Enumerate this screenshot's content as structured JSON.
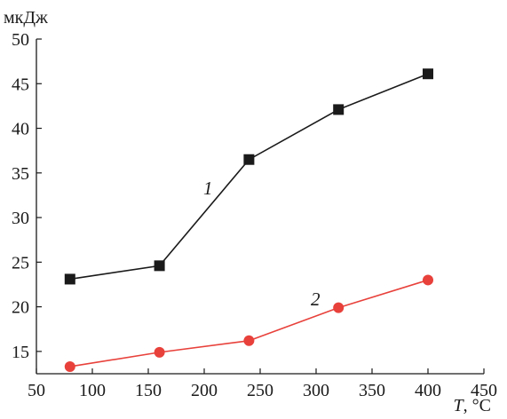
{
  "chart_data": {
    "type": "line",
    "ylabel": "мкДж",
    "xlabel_var": "T",
    "xlabel_unit": ", °C",
    "xlim": [
      50,
      450
    ],
    "ylim": [
      12.5,
      50
    ],
    "x_ticks": [
      50,
      100,
      150,
      200,
      250,
      300,
      350,
      400,
      450
    ],
    "y_ticks": [
      15,
      20,
      25,
      30,
      35,
      40,
      45,
      50
    ],
    "grid": false,
    "series": [
      {
        "name": "1",
        "color": "#1a1a1a",
        "marker": "square",
        "x": [
          80,
          160,
          240,
          320,
          400
        ],
        "y": [
          23.1,
          24.6,
          36.5,
          42.1,
          46.1
        ]
      },
      {
        "name": "2",
        "color": "#e8413b",
        "marker": "circle",
        "x": [
          80,
          160,
          240,
          320,
          400
        ],
        "y": [
          13.3,
          14.9,
          16.2,
          19.9,
          23.0
        ]
      }
    ]
  }
}
